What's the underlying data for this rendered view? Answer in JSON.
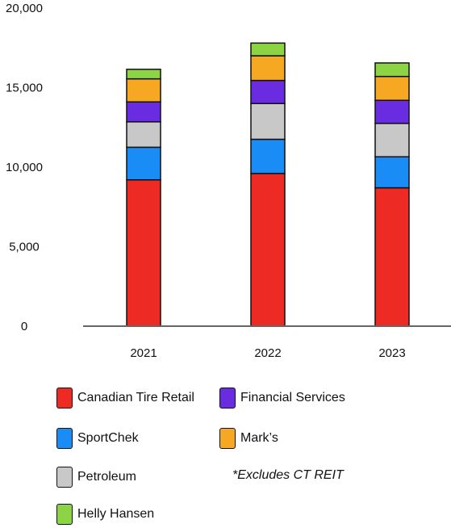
{
  "chart_data": {
    "type": "bar",
    "stacked": true,
    "categories": [
      "2021",
      "2022",
      "2023"
    ],
    "series": [
      {
        "name": "Canadian Tire Retail",
        "color": "#ee2a24",
        "values": [
          9200,
          9600,
          8700
        ]
      },
      {
        "name": "SportChek",
        "color": "#1a8cf5",
        "values": [
          2050,
          2150,
          1950
        ]
      },
      {
        "name": "Petroleum",
        "color": "#c8c8c8",
        "values": [
          1600,
          2250,
          2100
        ]
      },
      {
        "name": "Financial Services",
        "color": "#6a2ce0",
        "values": [
          1250,
          1450,
          1450
        ]
      },
      {
        "name": "Mark’s",
        "color": "#f7a823",
        "values": [
          1450,
          1550,
          1500
        ]
      },
      {
        "name": "Helly Hansen",
        "color": "#8cd443",
        "values": [
          600,
          800,
          850
        ]
      }
    ],
    "yticks": [
      "0",
      "5,000",
      "10,000",
      "15,000",
      "20,000"
    ],
    "ylim": [
      0,
      20000
    ],
    "grid": false,
    "legend_position": "bottom",
    "footnote": "*Excludes CT REIT"
  }
}
